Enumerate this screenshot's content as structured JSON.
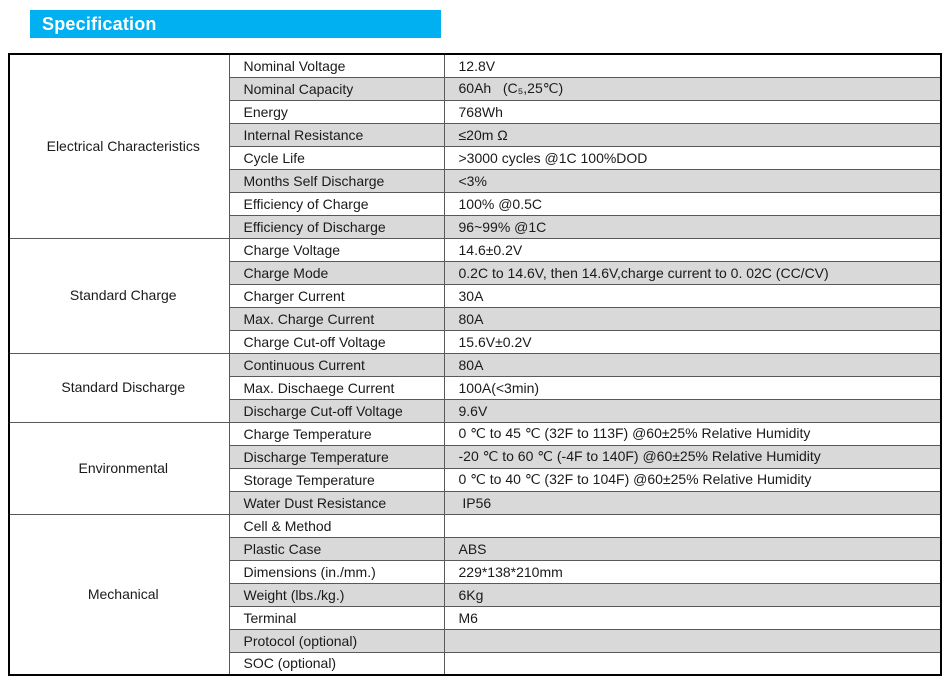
{
  "header": {
    "title": "Specification",
    "accent_color": "#00b0f0"
  },
  "table": {
    "row_alt_color": "#d9d9d9",
    "sections": [
      {
        "category": "Electrical Characteristics",
        "rows": [
          {
            "param": "Nominal Voltage",
            "value": "12.8V"
          },
          {
            "param": "Nominal Capacity",
            "value": "60Ah   (C₅,25℃)"
          },
          {
            "param": "Energy",
            "value": "768Wh"
          },
          {
            "param": "Internal Resistance",
            "value": "≤20m Ω"
          },
          {
            "param": "Cycle Life",
            "value": ">3000 cycles @1C 100%DOD"
          },
          {
            "param": "Months Self Discharge",
            "value": "<3%"
          },
          {
            "param": "Efficiency of Charge",
            "value": "100% @0.5C"
          },
          {
            "param": "Efficiency of Discharge",
            "value": "96~99% @1C"
          }
        ]
      },
      {
        "category": "Standard Charge",
        "rows": [
          {
            "param": "Charge Voltage",
            "value": "14.6±0.2V"
          },
          {
            "param": "Charge Mode",
            "value": "0.2C to 14.6V, then 14.6V,charge current to 0. 02C (CC/CV)"
          },
          {
            "param": "Charger Current",
            "value": "30A"
          },
          {
            "param": "Max. Charge Current",
            "value": "80A"
          },
          {
            "param": "Charge Cut-off Voltage",
            "value": "15.6V±0.2V"
          }
        ]
      },
      {
        "category": "Standard Discharge",
        "rows": [
          {
            "param": "Continuous Current",
            "value": "80A"
          },
          {
            "param": "Max. Dischaege Current",
            "value": "100A(<3min)"
          },
          {
            "param": "Discharge Cut-off Voltage",
            "value": "9.6V"
          }
        ]
      },
      {
        "category": "Environmental",
        "rows": [
          {
            "param": "Charge Temperature",
            "value": "0 ℃ to 45 ℃ (32F to 113F) @60±25% Relative Humidity"
          },
          {
            "param": "Discharge Temperature",
            "value": "-20 ℃ to 60 ℃ (-4F to 140F) @60±25% Relative Humidity"
          },
          {
            "param": "Storage Temperature",
            "value": "0 ℃ to 40 ℃ (32F to 104F) @60±25% Relative Humidity"
          },
          {
            "param": "Water Dust Resistance",
            "value": " IP56"
          }
        ]
      },
      {
        "category": "Mechanical",
        "rows": [
          {
            "param": "Cell & Method",
            "value": ""
          },
          {
            "param": "Plastic Case",
            "value": "ABS"
          },
          {
            "param": "Dimensions (in./mm.)",
            "value": "229*138*210mm"
          },
          {
            "param": "Weight (lbs./kg.)",
            "value": "6Kg"
          },
          {
            "param": "Terminal",
            "value": "M6"
          },
          {
            "param": "Protocol (optional)",
            "value": ""
          },
          {
            "param": "SOC (optional)",
            "value": ""
          }
        ]
      }
    ]
  }
}
